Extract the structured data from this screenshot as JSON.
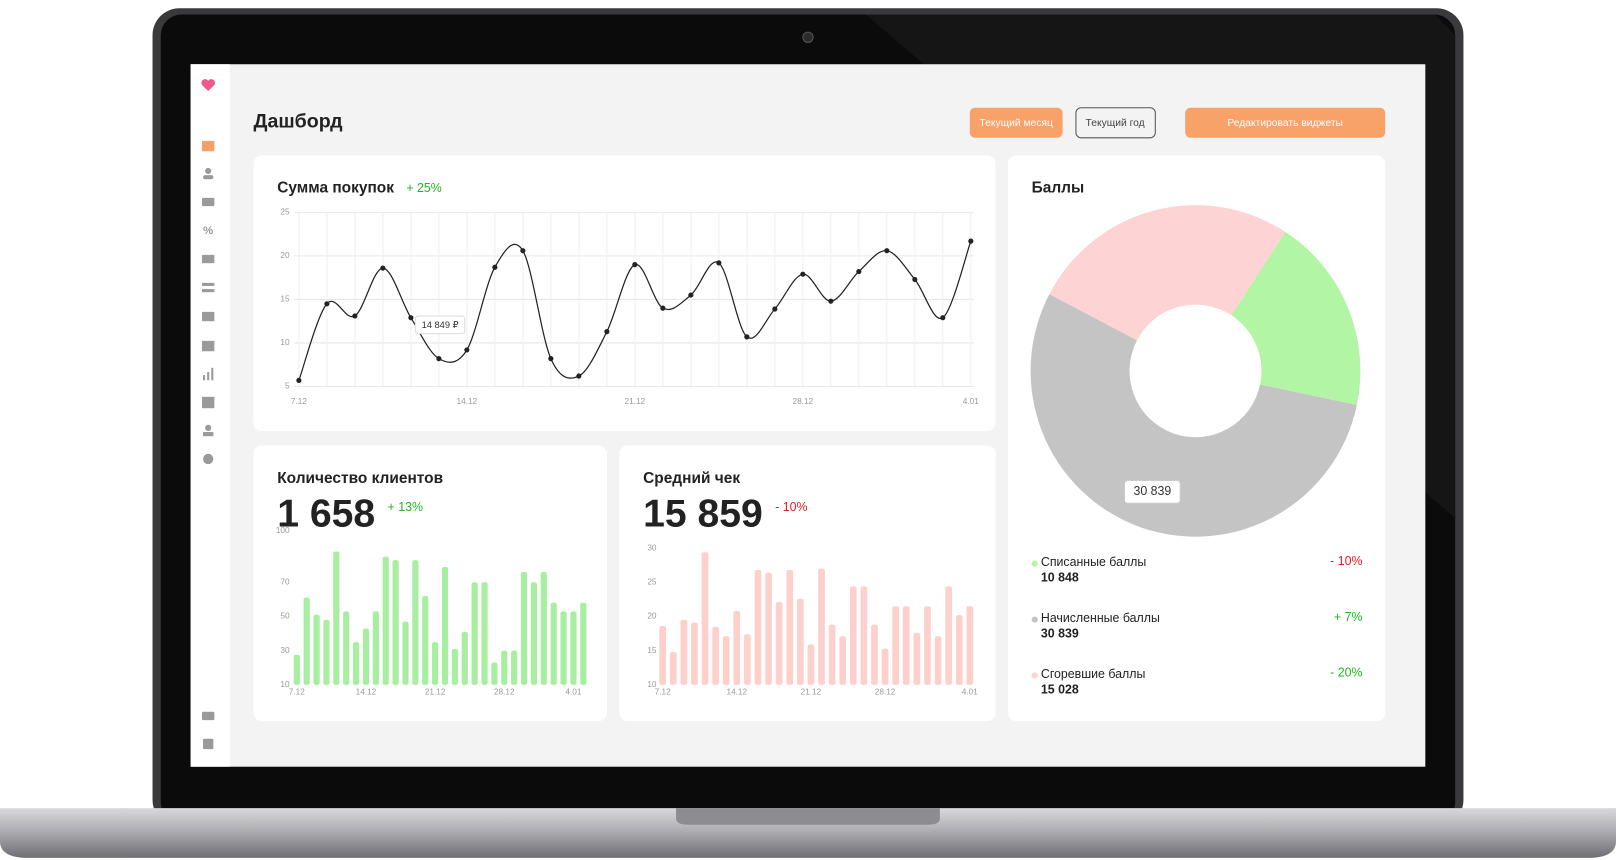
{
  "header": {
    "title": "Дашборд",
    "buttons": [
      "Текущий месяц",
      "Текущий год",
      "Редактировать виджеты"
    ]
  },
  "chart_data": [
    {
      "type": "line",
      "title": "Сумма покупок",
      "change": "+ 25%",
      "change_color": "#22b322",
      "tooltip": "14 849 ₽",
      "categories": [
        "7.12",
        null,
        null,
        null,
        null,
        null,
        "14.12",
        null,
        null,
        null,
        null,
        null,
        "21.12",
        null,
        null,
        null,
        null,
        null,
        "28.12",
        null,
        null,
        null,
        null,
        null,
        "4.01"
      ],
      "values": [
        5.7,
        14.5,
        13.1,
        18.6,
        12.9,
        8.2,
        9.2,
        18.7,
        20.6,
        8.2,
        6.2,
        11.3,
        19.0,
        14.0,
        15.5,
        19.2,
        10.7,
        13.9,
        17.9,
        14.8,
        18.2,
        20.6,
        17.3,
        12.9,
        21.7
      ],
      "color": "#222222",
      "ylim": [
        5,
        25
      ],
      "yticks": [
        5,
        10,
        15,
        20,
        25
      ],
      "grid": true
    },
    {
      "type": "bar",
      "title": "Количество клиентов",
      "total": "1 658",
      "change": "+ 13%",
      "change_color": "#22b322",
      "categories": [
        "7.12",
        null,
        null,
        null,
        null,
        null,
        null,
        "14.12",
        null,
        null,
        null,
        null,
        null,
        null,
        "21.12",
        null,
        null,
        null,
        null,
        null,
        null,
        "28.12",
        null,
        null,
        null,
        null,
        null,
        null,
        "4.01",
        null
      ],
      "values": [
        27.6,
        61,
        51,
        48,
        88,
        53,
        35,
        43,
        53,
        85,
        83,
        47,
        83,
        62,
        35,
        79,
        31,
        41,
        70,
        70,
        23,
        30,
        30,
        76,
        70,
        76,
        58,
        53,
        53,
        58
      ],
      "color": "#a8eea0",
      "ylim": [
        10,
        100
      ],
      "yticks": [
        10,
        30,
        50,
        70,
        100
      ]
    },
    {
      "type": "bar",
      "title": "Средний чек",
      "total": "15 859",
      "change": "- 10%",
      "change_color": "#e02020",
      "categories": [
        "7.12",
        null,
        null,
        null,
        null,
        null,
        null,
        "14.12",
        null,
        null,
        null,
        null,
        null,
        null,
        "21.12",
        null,
        null,
        null,
        null,
        null,
        null,
        "28.12",
        null,
        null,
        null,
        null,
        null,
        null,
        null,
        "4.01"
      ],
      "values": [
        18.6,
        14.8,
        19.5,
        19.1,
        29.4,
        18.5,
        17.1,
        20.8,
        17.4,
        26.8,
        26.4,
        22.1,
        26.8,
        22.6,
        15.9,
        27.0,
        18.8,
        17.1,
        24.4,
        24.4,
        18.8,
        15.3,
        21.5,
        21.5,
        17.6,
        21.5,
        17.1,
        24.4,
        20.2,
        21.5
      ],
      "color": "#fdd0cc",
      "ylim": [
        10,
        30
      ],
      "yticks": [
        10,
        15,
        20,
        25,
        30
      ]
    },
    {
      "type": "pie",
      "title": "Баллы",
      "categories": [
        "Списанные баллы",
        "Начисленные баллы",
        "Сгоревшие баллы"
      ],
      "values": [
        10848,
        30839,
        15028
      ],
      "value_labels": [
        "10 848",
        "30 839",
        "15 028"
      ],
      "colors": [
        "#b2f5a4",
        "#c4c4c4",
        "#fdd3d3"
      ],
      "changes": [
        "- 10%",
        "+ 7%",
        "- 20%"
      ],
      "change_colors": [
        "#e02020",
        "#22b322",
        "#22b322"
      ]
    }
  ]
}
